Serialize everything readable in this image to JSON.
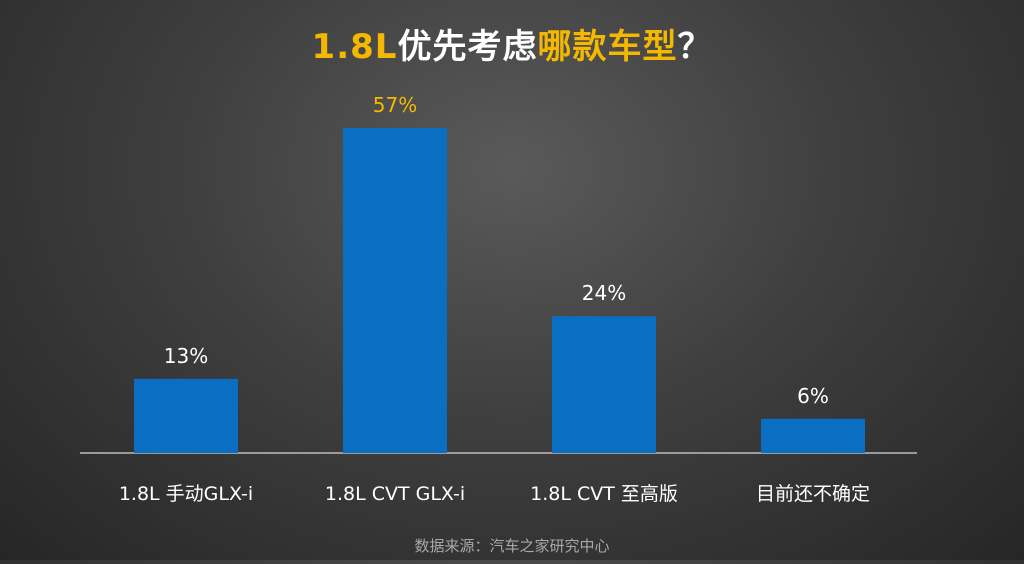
{
  "title": {
    "part1": "1.8L",
    "part2": "优先考虑",
    "part3": "哪款车型",
    "part4": "？"
  },
  "chart_data": {
    "type": "bar",
    "categories": [
      "1.8L 手动GLX-i",
      "1.8L CVT GLX-i",
      "1.8L CVT 至高版",
      "目前还不确定"
    ],
    "values": [
      13,
      57,
      24,
      6
    ],
    "value_labels": [
      "13%",
      "57%",
      "24%",
      "6%"
    ],
    "unit": "%",
    "title": "1.8L优先考虑哪款车型？",
    "xlabel": "",
    "ylabel": "",
    "ylim": [
      0,
      60
    ],
    "grid": false,
    "legend": "none",
    "bar_color": "#0a6fc2",
    "highlight_label_color": "#f5b800",
    "label_color": "#ffffff"
  },
  "source": "数据来源：汽车之家研究中心"
}
